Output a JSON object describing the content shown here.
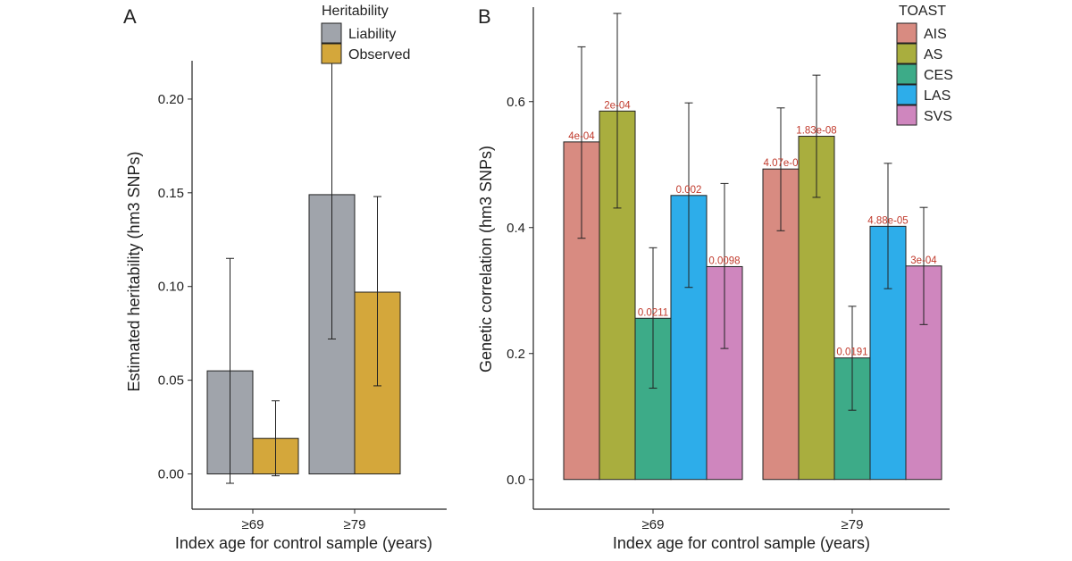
{
  "chart_data": [
    {
      "panel": "A",
      "type": "bar",
      "xlabel": "Index age for control sample (years)",
      "ylabel": "Estimated heritability (hm3 SNPs)",
      "categories": [
        "≥69",
        "≥79"
      ],
      "ylim": [
        -0.015,
        0.24
      ],
      "yticks": [
        0.0,
        0.05,
        0.1,
        0.15,
        0.2
      ],
      "ytick_labels": [
        "0.00",
        "0.05",
        "0.10",
        "0.15",
        "0.20"
      ],
      "legend_title": "Heritability",
      "series": [
        {
          "name": "Liability",
          "color": "#a0a4ab",
          "values": [
            0.055,
            0.149
          ],
          "err_low": [
            -0.005,
            0.072
          ],
          "err_high": [
            0.115,
            0.226
          ]
        },
        {
          "name": "Observed",
          "color": "#d4a73b",
          "values": [
            0.019,
            0.097
          ],
          "err_low": [
            -0.001,
            0.047
          ],
          "err_high": [
            0.039,
            0.148
          ]
        }
      ]
    },
    {
      "panel": "B",
      "type": "bar",
      "xlabel": "Index age for control sample (years)",
      "ylabel": "Genetic correlation (hm3 SNPs)",
      "categories": [
        "≥69",
        "≥79"
      ],
      "ylim": [
        -0.05,
        0.75
      ],
      "yticks": [
        0.0,
        0.2,
        0.4,
        0.6
      ],
      "ytick_labels": [
        "0.0",
        "0.2",
        "0.4",
        "0.6"
      ],
      "legend_title": "TOAST",
      "series": [
        {
          "name": "AIS",
          "color": "#d88b81",
          "values": [
            0.536,
            0.493
          ],
          "err_low": [
            0.383,
            0.395
          ],
          "err_high": [
            0.687,
            0.59
          ],
          "labels": [
            "4e-04",
            "4.07e-0"
          ]
        },
        {
          "name": "AS",
          "color": "#a9ae3e",
          "values": [
            0.585,
            0.545
          ],
          "err_low": [
            0.431,
            0.448
          ],
          "err_high": [
            0.74,
            0.642
          ],
          "labels": [
            "2e-04",
            "1.83e-08"
          ]
        },
        {
          "name": "CES",
          "color": "#3dab88",
          "values": [
            0.256,
            0.193
          ],
          "err_low": [
            0.145,
            0.11
          ],
          "err_high": [
            0.368,
            0.275
          ],
          "labels": [
            "0.0211",
            "0.0191"
          ]
        },
        {
          "name": "LAS",
          "color": "#2dadea",
          "values": [
            0.451,
            0.402
          ],
          "err_low": [
            0.305,
            0.303
          ],
          "err_high": [
            0.598,
            0.502
          ],
          "labels": [
            "0.002",
            "4.88e-05"
          ]
        },
        {
          "name": "SVS",
          "color": "#cf86be",
          "values": [
            0.338,
            0.339
          ],
          "err_low": [
            0.208,
            0.246
          ],
          "err_high": [
            0.47,
            0.432
          ],
          "labels": [
            "0.0098",
            "3e-04"
          ]
        }
      ]
    }
  ]
}
